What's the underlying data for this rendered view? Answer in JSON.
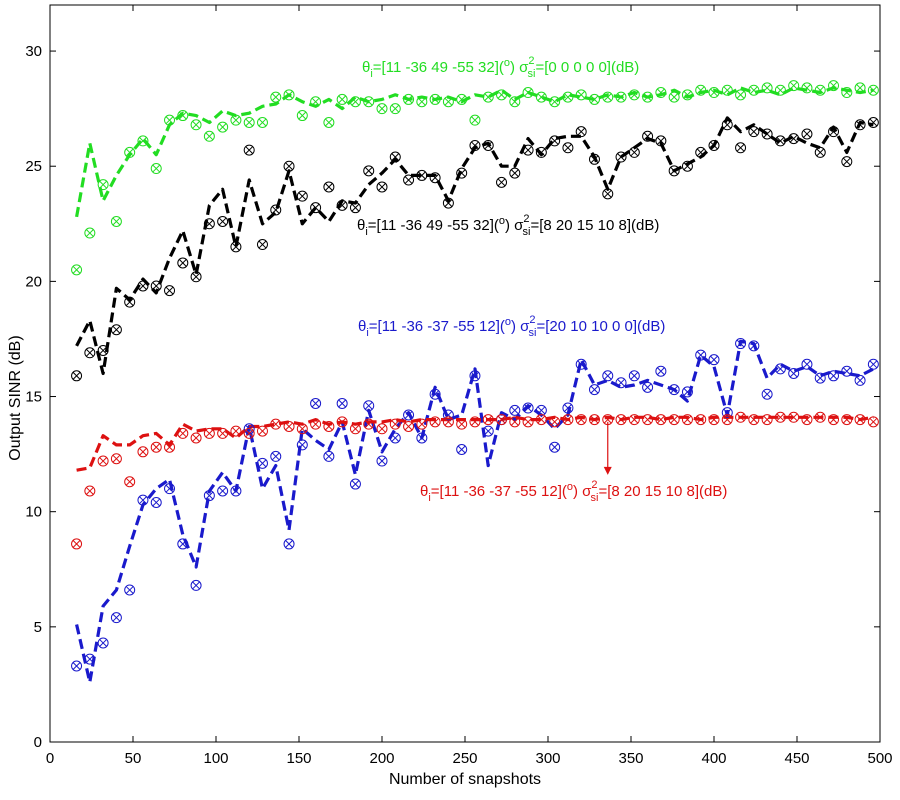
{
  "chart_data": {
    "type": "line",
    "xlabel": "Number of snapshots",
    "ylabel": "Output SINR (dB)",
    "xlim": [
      0,
      500
    ],
    "ylim": [
      0,
      32
    ],
    "xticks": [
      0,
      50,
      100,
      150,
      200,
      250,
      300,
      350,
      400,
      450,
      500
    ],
    "yticks": [
      0,
      5,
      10,
      15,
      20,
      25,
      30
    ],
    "grid": false,
    "x": [
      16,
      24,
      32,
      40,
      48,
      56,
      64,
      72,
      80,
      88,
      96,
      104,
      112,
      120,
      128,
      136,
      144,
      152,
      160,
      168,
      176,
      184,
      192,
      200,
      208,
      216,
      224,
      232,
      240,
      248,
      256,
      264,
      272,
      280,
      288,
      296,
      304,
      312,
      320,
      328,
      336,
      344,
      352,
      360,
      368,
      376,
      384,
      392,
      400,
      408,
      416,
      424,
      432,
      440,
      448,
      456,
      464,
      472,
      480,
      488,
      496
    ],
    "series": [
      {
        "name": "green",
        "color": "#22dd22",
        "annotation": {
          "theta": "θ",
          "theta_sub": "i",
          "theta_vals": "=[11 -36 49 -55 32](",
          "deg": "o",
          "sigma_part": ") σ",
          "sigma_sup": "2",
          "sigma_sub": "si",
          "sigma_vals": "=[0 0 0 0 0](dB)"
        },
        "line": [
          22.8,
          26.0,
          23.5,
          24.6,
          25.5,
          26.2,
          25.5,
          26.8,
          27.3,
          27.2,
          26.9,
          27.4,
          27.2,
          27.3,
          27.6,
          27.7,
          28.1,
          27.8,
          27.6,
          27.9,
          27.5,
          28.0,
          27.8,
          27.9,
          28.1,
          27.9,
          28.0,
          27.9,
          28.0,
          27.8,
          28.1,
          28.0,
          28.3,
          27.9,
          28.2,
          28.0,
          27.8,
          28.1,
          28.0,
          27.9,
          28.1,
          28.0,
          28.2,
          28.0,
          28.1,
          28.3,
          28.0,
          28.2,
          28.3,
          28.1,
          28.4,
          28.2,
          28.3,
          28.1,
          28.4,
          28.3,
          28.2,
          28.4,
          28.3,
          28.2,
          28.3
        ],
        "markers": [
          20.5,
          22.1,
          24.2,
          22.6,
          25.6,
          26.1,
          24.9,
          27.0,
          27.2,
          26.8,
          26.3,
          26.7,
          27.0,
          26.9,
          26.9,
          28.0,
          28.1,
          27.2,
          27.8,
          26.9,
          27.9,
          27.8,
          27.8,
          27.5,
          27.5,
          27.9,
          27.8,
          27.9,
          27.8,
          27.9,
          27.0,
          28.0,
          28.1,
          27.8,
          28.2,
          28.0,
          27.8,
          28.0,
          28.1,
          27.9,
          28.0,
          28.0,
          28.1,
          28.0,
          28.2,
          28.0,
          28.1,
          28.3,
          28.2,
          28.3,
          28.1,
          28.3,
          28.4,
          28.3,
          28.5,
          28.4,
          28.3,
          28.5,
          28.2,
          28.4,
          28.3
        ]
      },
      {
        "name": "black",
        "color": "#000000",
        "annotation": {
          "theta": "θ",
          "theta_sub": "i",
          "theta_vals": "=[11 -36 49 -55 32](",
          "deg": "o",
          "sigma_part": ") σ",
          "sigma_sup": "2",
          "sigma_sub": "si",
          "sigma_vals": "=[8 20 15 10 8](dB)"
        },
        "line": [
          17.2,
          18.3,
          16.0,
          19.7,
          19.2,
          20.1,
          19.5,
          21.0,
          22.2,
          20.3,
          23.3,
          24.0,
          21.5,
          24.4,
          22.5,
          23.0,
          24.8,
          22.5,
          23.2,
          22.6,
          23.5,
          23.4,
          24.2,
          24.7,
          25.3,
          24.6,
          24.6,
          24.6,
          23.5,
          24.9,
          25.8,
          26.0,
          25.0,
          25.0,
          26.2,
          25.5,
          26.2,
          26.3,
          26.3,
          25.4,
          24.0,
          25.4,
          25.8,
          26.2,
          26.0,
          24.8,
          25.1,
          25.4,
          25.9,
          27.1,
          26.5,
          26.8,
          26.4,
          26.0,
          26.3,
          26.0,
          25.8,
          26.7,
          25.6,
          26.9,
          26.8
        ],
        "markers": [
          15.9,
          16.9,
          17.0,
          17.9,
          19.1,
          19.8,
          19.8,
          19.6,
          20.8,
          20.2,
          22.5,
          22.6,
          21.5,
          25.7,
          21.6,
          23.1,
          25.0,
          23.7,
          23.2,
          24.1,
          23.3,
          23.2,
          24.8,
          24.1,
          25.4,
          24.4,
          24.6,
          24.5,
          23.4,
          24.7,
          25.9,
          25.9,
          24.3,
          24.7,
          25.7,
          25.6,
          26.1,
          25.8,
          26.5,
          25.3,
          23.8,
          25.4,
          25.6,
          26.3,
          26.1,
          24.8,
          25.0,
          25.6,
          25.9,
          26.8,
          25.8,
          26.5,
          26.4,
          26.1,
          26.2,
          26.4,
          25.6,
          26.5,
          25.2,
          26.8,
          26.9
        ]
      },
      {
        "name": "blue",
        "color": "#1a1acc",
        "annotation": {
          "theta": "θ",
          "theta_sub": "i",
          "theta_vals": "=[11 -36 -37 -55 12](",
          "deg": "o",
          "sigma_part": ") σ",
          "sigma_sup": "2",
          "sigma_sub": "si",
          "sigma_vals": "=[20 10 10 0 0](dB)"
        },
        "line": [
          5.1,
          2.6,
          5.9,
          6.6,
          8.5,
          10.3,
          11.0,
          11.4,
          9.0,
          7.6,
          10.9,
          11.7,
          10.9,
          13.7,
          11.0,
          12.0,
          9.2,
          13.6,
          13.1,
          12.7,
          13.9,
          11.6,
          14.4,
          12.6,
          13.6,
          14.3,
          13.2,
          15.4,
          14.0,
          14.2,
          16.2,
          12.0,
          14.3,
          14.0,
          14.6,
          14.2,
          13.6,
          14.2,
          16.6,
          15.5,
          15.7,
          15.4,
          15.5,
          15.7,
          15.5,
          15.3,
          14.8,
          16.8,
          16.3,
          14.2,
          17.4,
          17.3,
          15.8,
          16.4,
          16.1,
          16.3,
          15.9,
          16.1,
          16.0,
          15.9,
          16.2
        ],
        "markers": [
          3.3,
          3.6,
          4.3,
          5.4,
          6.6,
          10.5,
          10.4,
          11.0,
          8.6,
          6.8,
          10.7,
          10.9,
          10.9,
          13.6,
          12.1,
          12.4,
          8.6,
          12.9,
          14.7,
          12.4,
          14.7,
          11.2,
          14.6,
          12.2,
          13.2,
          14.2,
          13.2,
          15.1,
          14.2,
          12.7,
          15.9,
          13.5,
          14.0,
          14.4,
          14.5,
          14.4,
          12.8,
          14.5,
          16.4,
          15.3,
          15.9,
          15.6,
          15.9,
          15.4,
          16.1,
          15.3,
          15.2,
          16.8,
          16.6,
          14.3,
          17.3,
          17.2,
          15.1,
          16.2,
          16.0,
          16.4,
          15.8,
          15.9,
          16.1,
          15.7,
          16.4
        ]
      },
      {
        "name": "red",
        "color": "#dd1111",
        "annotation": {
          "theta": "θ",
          "theta_sub": "i",
          "theta_vals": "=[11 -36 -37 -55 12](",
          "deg": "o",
          "sigma_part": ") σ",
          "sigma_sup": "2",
          "sigma_sub": "si",
          "sigma_vals": "=[8 20 15 10 8](dB)"
        },
        "line": [
          11.8,
          11.9,
          13.3,
          12.9,
          12.9,
          13.3,
          13.4,
          12.9,
          13.8,
          13.5,
          13.6,
          13.6,
          13.2,
          13.7,
          13.7,
          13.8,
          13.9,
          13.8,
          14.0,
          13.8,
          13.9,
          13.8,
          13.9,
          13.9,
          14.0,
          13.9,
          14.0,
          14.0,
          14.0,
          14.0,
          14.0,
          14.0,
          14.0,
          14.1,
          14.0,
          14.0,
          14.1,
          14.0,
          14.1,
          14.0,
          14.1,
          14.0,
          14.1,
          14.1,
          14.0,
          14.1,
          14.1,
          14.0,
          14.1,
          14.1,
          14.1,
          14.1,
          14.1,
          14.1,
          14.1,
          14.1,
          14.1,
          14.1,
          14.1,
          14.0,
          14.1
        ],
        "markers": [
          8.6,
          10.9,
          12.2,
          12.3,
          11.3,
          12.6,
          12.8,
          12.8,
          13.4,
          13.2,
          13.4,
          13.4,
          13.5,
          13.4,
          13.5,
          13.8,
          13.7,
          13.6,
          13.8,
          13.7,
          13.9,
          13.6,
          13.8,
          13.6,
          13.8,
          13.7,
          13.8,
          13.9,
          13.9,
          13.8,
          13.9,
          14.0,
          14.0,
          13.9,
          13.9,
          14.0,
          13.9,
          14.0,
          14.0,
          14.0,
          14.0,
          14.0,
          14.0,
          14.0,
          14.0,
          14.0,
          14.0,
          14.0,
          14.0,
          14.0,
          14.1,
          14.0,
          14.0,
          14.1,
          14.1,
          14.0,
          14.1,
          14.0,
          14.0,
          14.0,
          13.9
        ]
      }
    ],
    "arrow": {
      "x": 336,
      "y_from": 13.9,
      "y_to": 11.6
    }
  }
}
